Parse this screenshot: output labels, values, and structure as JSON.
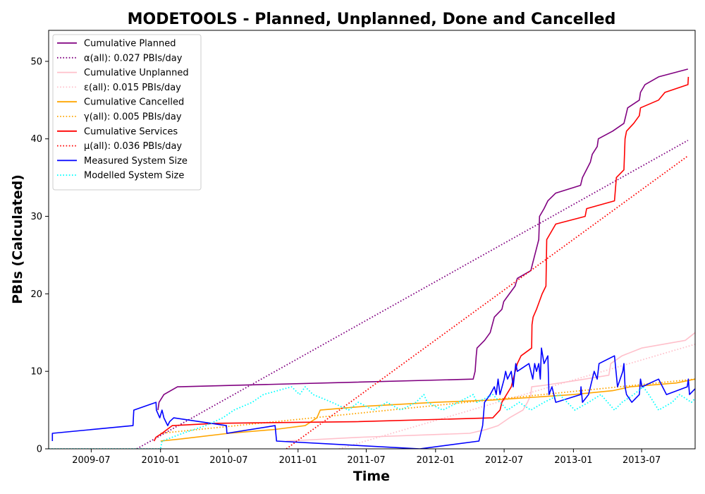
{
  "chart_data": {
    "type": "line",
    "title": "MODETOOLS - Planned, Unplanned, Done  and Cancelled",
    "xlabel": "Time",
    "ylabel": "PBIs (Calculated)",
    "xlim": [
      "2009-03-10",
      "2013-11-20"
    ],
    "ylim": [
      0,
      54
    ],
    "x_ticks": [
      "2009-07",
      "2010-01",
      "2010-07",
      "2011-01",
      "2011-07",
      "2012-01",
      "2012-07",
      "2013-01",
      "2013-07"
    ],
    "y_ticks": [
      0,
      10,
      20,
      30,
      40,
      50
    ],
    "grid": false,
    "legend_position": "upper-left",
    "series": [
      {
        "name": "Cumulative Planned",
        "color": "#800080",
        "style": "solid",
        "points": [
          [
            "2009-12-25",
            5
          ],
          [
            "2009-12-28",
            6
          ],
          [
            "2010-01-10",
            7
          ],
          [
            "2010-02-15",
            8
          ],
          [
            "2012-04-10",
            9
          ],
          [
            "2012-04-15",
            10
          ],
          [
            "2012-04-18",
            12
          ],
          [
            "2012-04-20",
            13
          ],
          [
            "2012-05-10",
            14
          ],
          [
            "2012-05-25",
            15
          ],
          [
            "2012-06-05",
            17
          ],
          [
            "2012-06-25",
            18
          ],
          [
            "2012-06-30",
            19
          ],
          [
            "2012-07-15",
            20
          ],
          [
            "2012-07-30",
            21
          ],
          [
            "2012-08-05",
            22
          ],
          [
            "2012-09-10",
            23
          ],
          [
            "2012-09-15",
            24
          ],
          [
            "2012-10-01",
            27
          ],
          [
            "2012-10-03",
            30
          ],
          [
            "2012-10-15",
            31
          ],
          [
            "2012-10-25",
            32
          ],
          [
            "2012-11-15",
            33
          ],
          [
            "2013-01-20",
            34
          ],
          [
            "2013-01-25",
            35
          ],
          [
            "2013-02-15",
            37
          ],
          [
            "2013-02-20",
            38
          ],
          [
            "2013-03-05",
            39
          ],
          [
            "2013-03-08",
            40
          ],
          [
            "2013-04-15",
            41
          ],
          [
            "2013-05-15",
            42
          ],
          [
            "2013-05-20",
            43
          ],
          [
            "2013-05-25",
            44
          ],
          [
            "2013-06-25",
            45
          ],
          [
            "2013-06-28",
            46
          ],
          [
            "2013-07-10",
            47
          ],
          [
            "2013-08-15",
            48
          ],
          [
            "2013-11-01",
            49
          ]
        ]
      },
      {
        "name": "α(all): 0.027 PBIs/day",
        "color": "#800080",
        "style": "dotted",
        "points": [
          [
            "2009-10-30",
            0
          ],
          [
            "2013-11-01",
            39.8
          ]
        ]
      },
      {
        "name": "Cumulative Unplanned",
        "color": "#ffc0cb",
        "style": "solid",
        "points": [
          [
            "2010-12-01",
            1
          ],
          [
            "2011-06-20",
            1.5
          ],
          [
            "2012-04-01",
            2
          ],
          [
            "2012-05-15",
            2.5
          ],
          [
            "2012-06-15",
            3
          ],
          [
            "2012-07-15",
            4
          ],
          [
            "2012-08-20",
            5
          ],
          [
            "2012-09-01",
            6
          ],
          [
            "2012-09-10",
            7
          ],
          [
            "2012-09-12",
            8
          ],
          [
            "2012-10-15",
            8.2
          ],
          [
            "2013-01-05",
            8.8
          ],
          [
            "2013-04-05",
            9.5
          ],
          [
            "2013-04-10",
            11
          ],
          [
            "2013-05-10",
            12
          ],
          [
            "2013-07-01",
            13
          ],
          [
            "2013-10-25",
            14
          ],
          [
            "2013-11-20",
            15
          ]
        ]
      },
      {
        "name": "ε(all): 0.015 PBIs/day",
        "color": "#ffc0cb",
        "style": "dotted",
        "points": [
          [
            "2011-04-20",
            0
          ],
          [
            "2013-11-20",
            13.5
          ]
        ]
      },
      {
        "name": "Cumulative Cancelled",
        "color": "#ffa500",
        "style": "solid",
        "points": [
          [
            "2010-01-01",
            1
          ],
          [
            "2010-03-01",
            1.3
          ],
          [
            "2010-07-01",
            2
          ],
          [
            "2010-11-01",
            2.5
          ],
          [
            "2011-01-20",
            3
          ],
          [
            "2011-02-20",
            4
          ],
          [
            "2011-03-01",
            5
          ],
          [
            "2011-07-01",
            5.5
          ],
          [
            "2012-01-01",
            6
          ],
          [
            "2012-06-01",
            6.3
          ],
          [
            "2013-01-01",
            7
          ],
          [
            "2013-04-15",
            7.5
          ],
          [
            "2013-06-01",
            8
          ],
          [
            "2013-10-01",
            8.5
          ],
          [
            "2013-11-20",
            9
          ]
        ]
      },
      {
        "name": "γ(all): 0.005 PBIs/day",
        "color": "#ffa500",
        "style": "dotted",
        "points": [
          [
            "2010-01-01",
            2
          ],
          [
            "2013-11-20",
            9
          ]
        ]
      },
      {
        "name": "Cumulative Services",
        "color": "#ff0000",
        "style": "solid",
        "points": [
          [
            "2009-12-15",
            1
          ],
          [
            "2009-12-20",
            1.5
          ],
          [
            "2010-01-05",
            2
          ],
          [
            "2010-02-01",
            3
          ],
          [
            "2010-06-01",
            3.3
          ],
          [
            "2011-06-01",
            3.5
          ],
          [
            "2012-06-01",
            4
          ],
          [
            "2012-06-20",
            5
          ],
          [
            "2012-06-25",
            6
          ],
          [
            "2012-07-20",
            8
          ],
          [
            "2012-07-25",
            9
          ],
          [
            "2012-08-05",
            11
          ],
          [
            "2012-08-15",
            12
          ],
          [
            "2012-09-12",
            13
          ],
          [
            "2012-09-13",
            16
          ],
          [
            "2012-09-16",
            17
          ],
          [
            "2012-09-25",
            18
          ],
          [
            "2012-10-10",
            20
          ],
          [
            "2012-10-20",
            21
          ],
          [
            "2012-10-22",
            27
          ],
          [
            "2012-11-15",
            29
          ],
          [
            "2013-02-01",
            30
          ],
          [
            "2013-02-05",
            31
          ],
          [
            "2013-04-20",
            32
          ],
          [
            "2013-04-25",
            35
          ],
          [
            "2013-05-15",
            36
          ],
          [
            "2013-05-18",
            40
          ],
          [
            "2013-05-22",
            41
          ],
          [
            "2013-06-10",
            42
          ],
          [
            "2013-06-25",
            43
          ],
          [
            "2013-06-28",
            44
          ],
          [
            "2013-08-15",
            45
          ],
          [
            "2013-09-01",
            46
          ],
          [
            "2013-11-01",
            47
          ],
          [
            "2013-11-02",
            48
          ]
        ]
      },
      {
        "name": "μ(all): 0.036 PBIs/day",
        "color": "#ff0000",
        "style": "dotted",
        "points": [
          [
            "2010-12-01",
            0
          ],
          [
            "2013-11-01",
            37.8
          ]
        ]
      },
      {
        "name": "Measured System Size",
        "color": "#0000ff",
        "style": "solid",
        "points": [
          [
            "2009-03-20",
            1
          ],
          [
            "2009-03-20",
            2
          ],
          [
            "2009-10-20",
            3
          ],
          [
            "2009-10-21",
            4
          ],
          [
            "2009-10-22",
            5
          ],
          [
            "2009-12-20",
            6
          ],
          [
            "2009-12-21",
            5
          ],
          [
            "2009-12-30",
            4
          ],
          [
            "2010-01-05",
            5
          ],
          [
            "2010-01-10",
            4
          ],
          [
            "2010-01-20",
            3
          ],
          [
            "2010-01-25",
            3.5
          ],
          [
            "2010-02-05",
            4
          ],
          [
            "2010-06-25",
            3
          ],
          [
            "2010-06-26",
            2
          ],
          [
            "2010-11-01",
            3
          ],
          [
            "2010-11-05",
            1
          ],
          [
            "2011-11-20",
            0
          ],
          [
            "2012-04-25",
            1
          ],
          [
            "2012-05-05",
            3
          ],
          [
            "2012-05-10",
            6
          ],
          [
            "2012-05-25",
            7
          ],
          [
            "2012-06-05",
            8
          ],
          [
            "2012-06-10",
            7
          ],
          [
            "2012-06-15",
            9
          ],
          [
            "2012-06-20",
            7
          ],
          [
            "2012-07-01",
            9
          ],
          [
            "2012-07-05",
            10
          ],
          [
            "2012-07-10",
            9
          ],
          [
            "2012-07-20",
            10
          ],
          [
            "2012-07-25",
            8
          ],
          [
            "2012-08-01",
            11
          ],
          [
            "2012-08-05",
            10
          ],
          [
            "2012-09-05",
            11
          ],
          [
            "2012-09-15",
            9
          ],
          [
            "2012-09-20",
            11
          ],
          [
            "2012-09-25",
            10
          ],
          [
            "2012-10-01",
            11
          ],
          [
            "2012-10-05",
            9
          ],
          [
            "2012-10-08",
            13
          ],
          [
            "2012-10-15",
            11
          ],
          [
            "2012-10-25",
            12
          ],
          [
            "2012-10-28",
            7
          ],
          [
            "2012-11-05",
            8
          ],
          [
            "2012-11-15",
            6
          ],
          [
            "2013-01-20",
            7
          ],
          [
            "2013-01-21",
            8
          ],
          [
            "2013-01-25",
            6
          ],
          [
            "2013-02-10",
            7
          ],
          [
            "2013-02-25",
            10
          ],
          [
            "2013-03-05",
            9
          ],
          [
            "2013-03-10",
            11
          ],
          [
            "2013-04-20",
            12
          ],
          [
            "2013-04-28",
            8
          ],
          [
            "2013-05-12",
            10
          ],
          [
            "2013-05-15",
            11
          ],
          [
            "2013-05-18",
            8
          ],
          [
            "2013-05-22",
            7
          ],
          [
            "2013-06-05",
            6
          ],
          [
            "2013-06-25",
            7
          ],
          [
            "2013-06-28",
            9
          ],
          [
            "2013-07-02",
            8
          ],
          [
            "2013-08-15",
            9
          ],
          [
            "2013-09-05",
            7
          ],
          [
            "2013-10-30",
            8
          ],
          [
            "2013-11-02",
            9
          ],
          [
            "2013-11-05",
            7
          ],
          [
            "2013-11-25",
            8
          ],
          [
            "2013-11-30",
            7
          ]
        ]
      },
      {
        "name": "Modelled System Size",
        "color": "#00ffff",
        "style": "dotted",
        "points": [
          [
            "2009-03-10",
            0
          ],
          [
            "2010-01-01",
            0
          ],
          [
            "2010-01-05",
            1
          ],
          [
            "2010-03-01",
            2
          ],
          [
            "2010-05-01",
            3
          ],
          [
            "2010-06-15",
            4
          ],
          [
            "2010-07-15",
            5
          ],
          [
            "2010-09-01",
            6
          ],
          [
            "2010-10-01",
            7
          ],
          [
            "2010-12-15",
            8
          ],
          [
            "2011-01-05",
            7
          ],
          [
            "2011-01-20",
            8
          ],
          [
            "2011-02-10",
            7
          ],
          [
            "2011-04-01",
            6
          ],
          [
            "2011-05-15",
            5
          ],
          [
            "2011-06-10",
            6
          ],
          [
            "2011-07-20",
            5
          ],
          [
            "2011-08-25",
            6
          ],
          [
            "2011-10-01",
            5
          ],
          [
            "2011-11-10",
            6
          ],
          [
            "2011-12-01",
            7
          ],
          [
            "2011-12-10",
            6
          ],
          [
            "2012-01-20",
            5
          ],
          [
            "2012-03-01",
            6
          ],
          [
            "2012-04-10",
            7
          ],
          [
            "2012-04-20",
            6
          ],
          [
            "2012-06-01",
            7
          ],
          [
            "2012-07-10",
            5
          ],
          [
            "2012-08-10",
            6
          ],
          [
            "2012-09-10",
            5
          ],
          [
            "2012-10-15",
            6
          ],
          [
            "2012-11-25",
            7
          ],
          [
            "2013-01-05",
            5
          ],
          [
            "2013-02-10",
            6
          ],
          [
            "2013-03-15",
            7
          ],
          [
            "2013-04-20",
            5
          ],
          [
            "2013-05-10",
            6
          ],
          [
            "2013-06-10",
            7
          ],
          [
            "2013-07-05",
            8
          ],
          [
            "2013-07-20",
            7
          ],
          [
            "2013-08-15",
            5
          ],
          [
            "2013-09-20",
            6
          ],
          [
            "2013-10-10",
            7
          ],
          [
            "2013-11-10",
            6
          ],
          [
            "2013-11-30",
            7
          ]
        ]
      }
    ]
  }
}
